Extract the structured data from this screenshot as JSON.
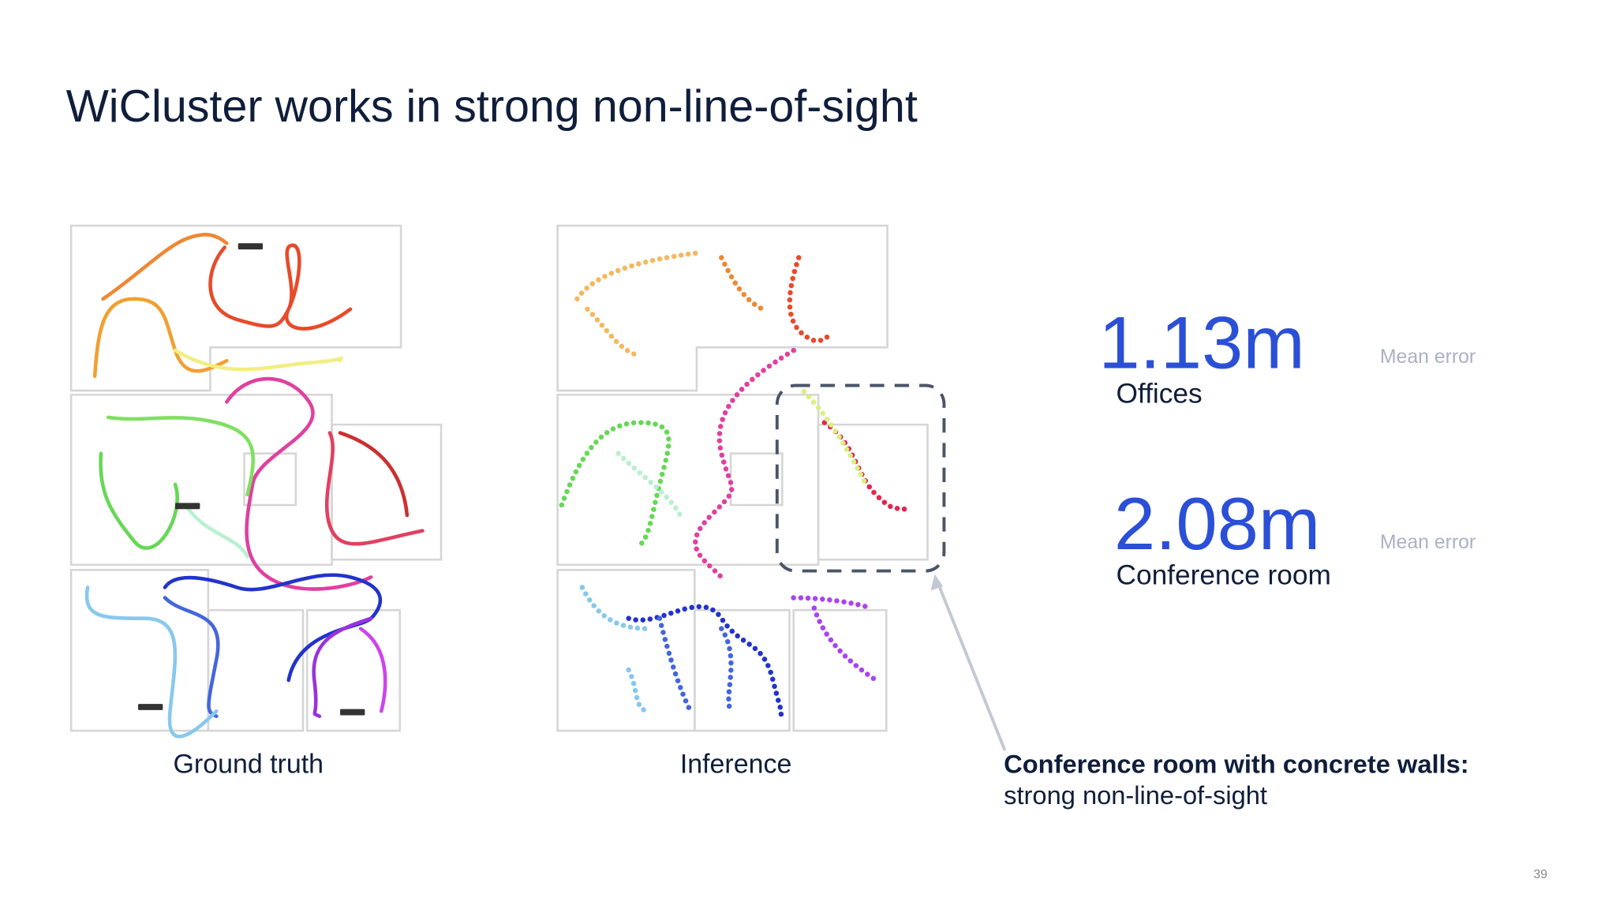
{
  "header": {
    "title": "WiCluster works in strong non-line-of-sight"
  },
  "panels": [
    {
      "label": "Ground truth"
    },
    {
      "label": "Inference"
    }
  ],
  "metrics": [
    {
      "value": "1.13m",
      "label": "Mean error",
      "caption": "Offices"
    },
    {
      "value": "2.08m",
      "label": "Mean error",
      "caption": "Conference room"
    }
  ],
  "note": {
    "bold": "Conference room with concrete walls:",
    "text": "strong non-line-of-sight"
  },
  "footer": {
    "page": "39"
  }
}
